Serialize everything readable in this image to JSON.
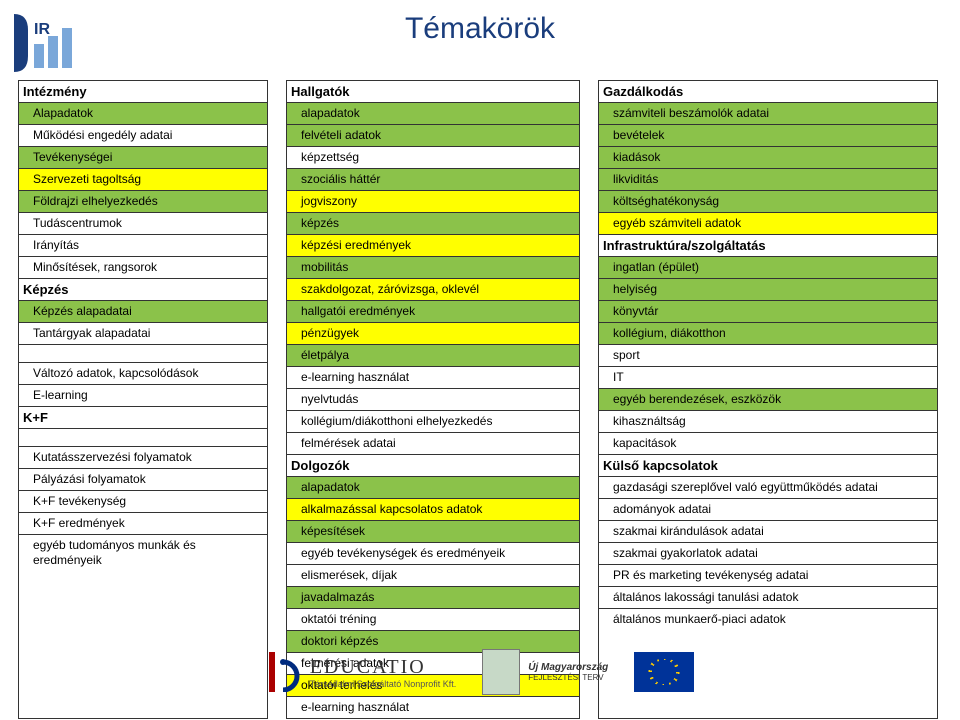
{
  "title": "Témakörök",
  "colors": {
    "green": "#8bc24a",
    "yellow": "#ffff00",
    "white": "#ffffff",
    "title_color": "#1a3d7c",
    "border": "#333333"
  },
  "col1": [
    {
      "type": "head",
      "text": "Intézmény"
    },
    {
      "text": "Alapadatok",
      "c": "g"
    },
    {
      "text": "Működési engedély adatai",
      "c": "w"
    },
    {
      "text": "Tevékenységei",
      "c": "g"
    },
    {
      "text": "Szervezeti tagoltság",
      "c": "y"
    },
    {
      "text": "Földrajzi elhelyezkedés",
      "c": "g"
    },
    {
      "text": "Tudáscentrumok",
      "c": "w"
    },
    {
      "text": "Irányítás",
      "c": "w"
    },
    {
      "text": "Minősítések, rangsorok",
      "c": "w"
    },
    {
      "type": "head",
      "text": "Képzés"
    },
    {
      "text": "Képzés alapadatai",
      "c": "g"
    },
    {
      "text": "Tantárgyak alapadatai",
      "c": "w"
    },
    {
      "type": "spacer"
    },
    {
      "text": "Változó adatok, kapcsolódások",
      "c": "w"
    },
    {
      "text": "E-learning",
      "c": "w"
    },
    {
      "type": "head",
      "text": "K+F"
    },
    {
      "type": "spacer"
    },
    {
      "text": "Kutatásszervezési folyamatok",
      "c": "w"
    },
    {
      "text": "Pályázási folyamatok",
      "c": "w"
    },
    {
      "text": "K+F tevékenység",
      "c": "w"
    },
    {
      "text": "K+F eredmények",
      "c": "w"
    },
    {
      "text": "egyéb tudományos munkák és eredményeik",
      "c": "w"
    }
  ],
  "col2": [
    {
      "type": "head",
      "text": "Hallgatók"
    },
    {
      "text": "alapadatok",
      "c": "g"
    },
    {
      "text": "felvételi adatok",
      "c": "g"
    },
    {
      "text": "képzettség",
      "c": "w"
    },
    {
      "text": "szociális háttér",
      "c": "g"
    },
    {
      "text": "jogviszony",
      "c": "y"
    },
    {
      "text": "képzés",
      "c": "g"
    },
    {
      "text": "képzési eredmények",
      "c": "y"
    },
    {
      "text": "mobilitás",
      "c": "g"
    },
    {
      "text": "szakdolgozat, záróvizsga, oklevél",
      "c": "y"
    },
    {
      "text": "hallgatói eredmények",
      "c": "g"
    },
    {
      "text": "pénzügyek",
      "c": "y"
    },
    {
      "text": "életpálya",
      "c": "g"
    },
    {
      "text": "e-learning használat",
      "c": "w"
    },
    {
      "text": "nyelvtudás",
      "c": "w"
    },
    {
      "text": "kollégium/diákotthoni elhelyezkedés",
      "c": "w"
    },
    {
      "text": "felmérések adatai",
      "c": "w"
    },
    {
      "type": "head",
      "text": "Dolgozók"
    },
    {
      "text": "alapadatok",
      "c": "g"
    },
    {
      "text": "alkalmazással kapcsolatos adatok",
      "c": "y"
    },
    {
      "text": "képesítések",
      "c": "g"
    },
    {
      "text": "egyéb tevékenységek és eredményeik",
      "c": "w"
    },
    {
      "text": "elismerések, díjak",
      "c": "w"
    },
    {
      "text": "javadalmazás",
      "c": "g"
    },
    {
      "text": "oktatói tréning",
      "c": "w"
    },
    {
      "text": "doktori képzés",
      "c": "g"
    },
    {
      "text": "felmérési adatok",
      "c": "w"
    },
    {
      "text": "oktatói terhelés",
      "c": "y"
    },
    {
      "text": "e-learning használat",
      "c": "w"
    }
  ],
  "col3": [
    {
      "type": "head",
      "text": "Gazdálkodás"
    },
    {
      "text": "számviteli beszámolók adatai",
      "c": "g"
    },
    {
      "text": "bevételek",
      "c": "g"
    },
    {
      "text": "kiadások",
      "c": "g"
    },
    {
      "text": "likviditás",
      "c": "g"
    },
    {
      "text": "költséghatékonyság",
      "c": "g"
    },
    {
      "text": "egyéb számviteli adatok",
      "c": "y"
    },
    {
      "type": "head",
      "text": "Infrastruktúra/szolgáltatás"
    },
    {
      "text": "ingatlan (épület)",
      "c": "g"
    },
    {
      "text": "helyiség",
      "c": "g"
    },
    {
      "text": "könyvtár",
      "c": "g"
    },
    {
      "text": "kollégium, diákotthon",
      "c": "g"
    },
    {
      "text": "sport",
      "c": "w"
    },
    {
      "text": "IT",
      "c": "w"
    },
    {
      "text": "egyéb berendezések, eszközök",
      "c": "g"
    },
    {
      "text": "kihasználtság",
      "c": "w"
    },
    {
      "text": "kapacitások",
      "c": "w"
    },
    {
      "type": "head",
      "text": "Külső kapcsolatok"
    },
    {
      "text": "gazdasági szereplővel való együttműködés adatai",
      "c": "w"
    },
    {
      "text": "adományok adatai",
      "c": "w"
    },
    {
      "text": "szakmai kirándulások adatai",
      "c": "w"
    },
    {
      "text": "szakmai gyakorlatok adatai",
      "c": "w"
    },
    {
      "text": "PR és marketing tevékenység adatai",
      "c": "w"
    },
    {
      "text": "általános lakossági tanulási adatok",
      "c": "w"
    },
    {
      "text": "általános munkaerő-piaci adatok",
      "c": "w"
    }
  ],
  "footer": {
    "educatio": "EDUCATIO",
    "educatio_sub": "Társadalmi Szolgáltató Nonprofit Kft.",
    "umft_line1": "Új Magyarország",
    "umft_line2": "FEJLESZTÉSI TERV"
  }
}
